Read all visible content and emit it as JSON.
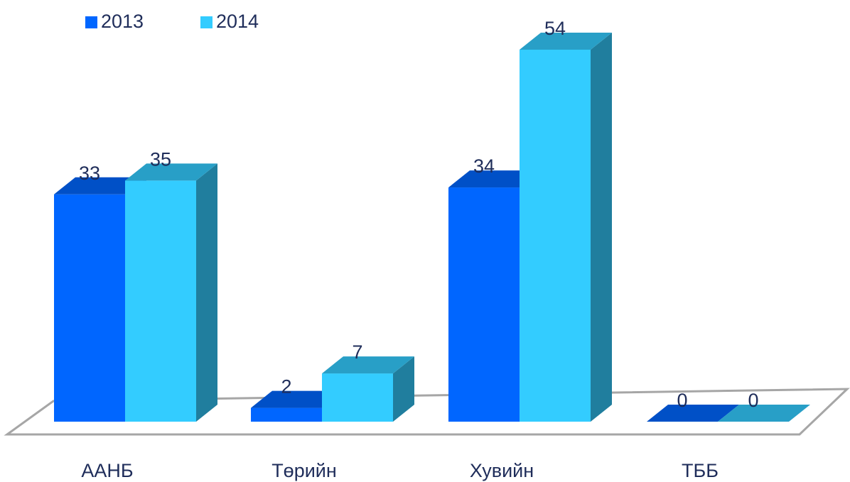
{
  "chart_data": {
    "type": "bar",
    "categories": [
      "ААНБ",
      "Төрийн",
      "Хувийн",
      "ТББ"
    ],
    "series": [
      {
        "name": "2013",
        "color": "#0066ff",
        "values": [
          33,
          2,
          34,
          0
        ]
      },
      {
        "name": "2014",
        "color": "#33ccff",
        "values": [
          35,
          7,
          54,
          0
        ]
      }
    ]
  }
}
